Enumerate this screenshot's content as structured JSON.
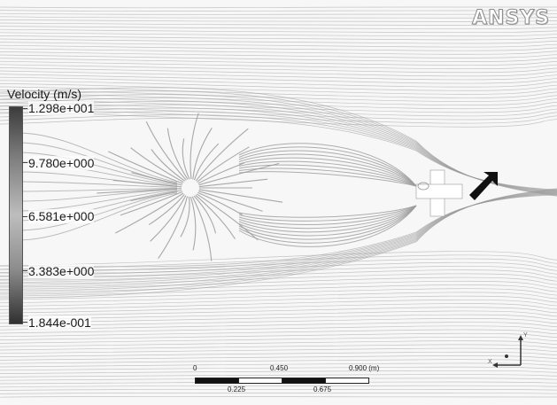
{
  "logo": {
    "text": "ANSYS"
  },
  "legend": {
    "title": "Velocity (m/s)",
    "ticks": [
      "1.298e+001",
      "9.780e+000",
      "6.581e+000",
      "3.383e+000",
      "1.844e-001"
    ]
  },
  "scale": {
    "top_labels": [
      "0",
      "0.450",
      "0.900 (m)"
    ],
    "bottom_labels": [
      "0.225",
      "0.675"
    ]
  },
  "axes_triad": {
    "y_label": "Y",
    "x_label": "X"
  },
  "colors": {
    "background": "#f7f7f7",
    "streamline": "#9a9a9a",
    "object": "#ffffff",
    "flow_arrow": "#111111"
  }
}
